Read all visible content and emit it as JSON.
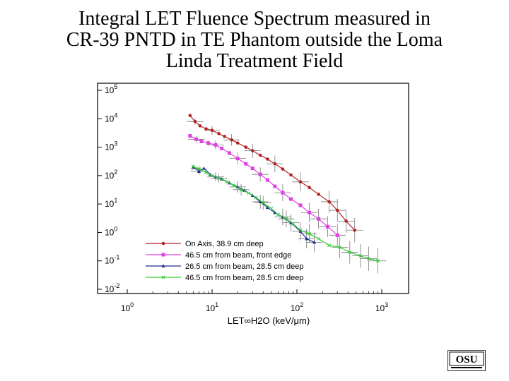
{
  "slide": {
    "title_lines": [
      "Integral LET Fluence Spectrum measured in",
      "CR-39 PNTD in TE Phantom outside the Loma",
      "Linda Treatment Field"
    ]
  },
  "logo": {
    "text": "OSU"
  },
  "colors": {
    "red": "#b22222",
    "magenta": "#e23fe2",
    "blue": "#1c2f8f",
    "green": "#33cc33"
  },
  "chart_data": {
    "type": "line",
    "xscale": "log",
    "yscale": "log",
    "xlim": [
      1,
      1000
    ],
    "ylim": [
      0.01,
      100000
    ],
    "xlabel": "LET∞H2O (keV/μm)",
    "ylabel": "",
    "x_ticks": [
      1,
      10,
      100,
      1000
    ],
    "x_tick_labels": [
      {
        "base": "10",
        "exp": "0"
      },
      {
        "base": "10",
        "exp": "1"
      },
      {
        "base": "10",
        "exp": "2"
      },
      {
        "base": "10",
        "exp": "3"
      }
    ],
    "y_ticks": [
      0.01,
      0.1,
      1,
      10,
      100,
      1000,
      10000,
      100000
    ],
    "y_tick_labels": [
      {
        "base": "10",
        "exp": "-2"
      },
      {
        "base": "10",
        "exp": "-1"
      },
      {
        "base": "10",
        "exp": "0"
      },
      {
        "base": "10",
        "exp": "1"
      },
      {
        "base": "10",
        "exp": "2"
      },
      {
        "base": "10",
        "exp": "3"
      },
      {
        "base": "10",
        "exp": "4"
      },
      {
        "base": "10",
        "exp": "5"
      }
    ],
    "legend_position": "bottom-left",
    "series": [
      {
        "name": "On Axis, 38.9 cm deep",
        "color": "#b22222",
        "x": [
          5.5,
          6.3,
          7.2,
          8.5,
          10,
          12,
          14,
          17,
          20,
          25,
          30,
          37,
          45,
          55,
          68,
          85,
          110,
          140,
          180,
          240,
          300,
          380,
          480
        ],
        "y": [
          13000,
          8000,
          5600,
          4400,
          3900,
          3000,
          2400,
          1800,
          1400,
          1000,
          750,
          520,
          380,
          260,
          170,
          105,
          60,
          38,
          22,
          12,
          6,
          2.5,
          1.2
        ]
      },
      {
        "name": "46.5 cm from beam, front edge",
        "color": "#e23fe2",
        "x": [
          5.5,
          6.5,
          7.5,
          9,
          11,
          13,
          16,
          20,
          25,
          30,
          37,
          45,
          55,
          68,
          85,
          110,
          140,
          180,
          230,
          300
        ],
        "y": [
          2500,
          1900,
          1600,
          1400,
          1200,
          900,
          620,
          400,
          260,
          180,
          110,
          70,
          42,
          25,
          15,
          9,
          5,
          3,
          1.6,
          0.8
        ]
      },
      {
        "name": "26.5 cm from beam, 28.5 cm deep",
        "color": "#1c2f8f",
        "x": [
          6,
          7,
          8,
          9.5,
          11,
          13,
          16,
          20,
          24,
          30,
          37,
          45,
          55,
          68,
          85,
          110,
          130,
          160
        ],
        "y": [
          200,
          140,
          180,
          110,
          90,
          75,
          55,
          40,
          30,
          20,
          12,
          7.5,
          5,
          3.5,
          2.2,
          1.1,
          0.6,
          0.45
        ]
      },
      {
        "name": "46.5 cm from beam, 28.5 cm deep",
        "color": "#33cc33",
        "x": [
          6,
          7,
          8.5,
          10,
          12,
          15,
          18,
          22,
          27,
          33,
          40,
          50,
          60,
          75,
          90,
          110,
          140,
          180,
          240,
          320,
          420,
          560,
          700,
          900
        ],
        "y": [
          210,
          170,
          130,
          100,
          80,
          60,
          45,
          32,
          24,
          17,
          11,
          7,
          4.2,
          3,
          2,
          1.2,
          0.9,
          0.6,
          0.35,
          0.3,
          0.2,
          0.15,
          0.12,
          0.1
        ]
      }
    ]
  }
}
